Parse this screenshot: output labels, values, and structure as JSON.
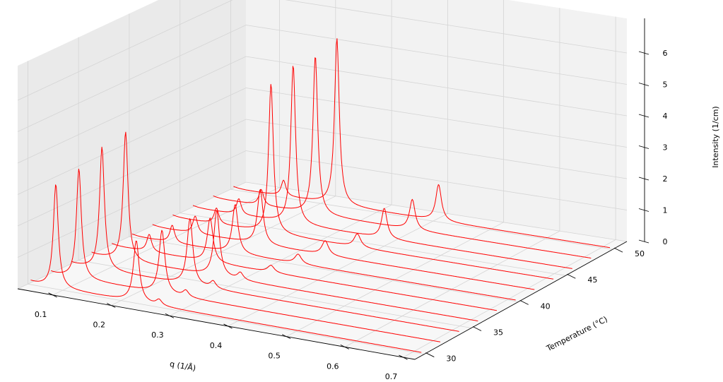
{
  "chart_data": {
    "type": "waterfall-3d-line",
    "title": "",
    "xlabel": "q (1/Å)",
    "ylabel": "Temperature (°C)",
    "zlabel": "Intensity (1/cm)",
    "xlim": [
      0.04,
      0.72
    ],
    "ylim": [
      29,
      51.5
    ],
    "zlim": [
      0,
      6.5
    ],
    "x_ticks": [
      "0.1",
      "0.2",
      "0.3",
      "0.4",
      "0.5",
      "0.6",
      "0.7"
    ],
    "y_ticks": [
      "30",
      "35",
      "40",
      "45",
      "50"
    ],
    "z_ticks": [
      "0",
      "1",
      "2",
      "3",
      "4",
      "5",
      "6"
    ],
    "grid": true,
    "line_color": "#ff0000",
    "series": [
      {
        "temperature": 30,
        "peaks": [
          [
            0.088,
            3.3,
            0.005
          ],
          [
            0.226,
            1.95,
            0.006
          ],
          [
            0.265,
            0.18,
            0.006
          ]
        ]
      },
      {
        "temperature": 32,
        "peaks": [
          [
            0.093,
            3.5,
            0.005
          ],
          [
            0.236,
            2.0,
            0.006
          ],
          [
            0.277,
            0.2,
            0.006
          ]
        ]
      },
      {
        "temperature": 34,
        "peaks": [
          [
            0.098,
            3.9,
            0.005
          ],
          [
            0.25,
            2.1,
            0.006
          ],
          [
            0.29,
            0.22,
            0.006
          ]
        ]
      },
      {
        "temperature": 36,
        "peaks": [
          [
            0.104,
            4.1,
            0.005
          ],
          [
            0.262,
            2.1,
            0.006
          ],
          [
            0.303,
            0.22,
            0.006
          ]
        ]
      },
      {
        "temperature": 38,
        "peaks": [
          [
            0.11,
            0.55,
            0.005
          ],
          [
            0.216,
            1.4,
            0.006
          ],
          [
            0.322,
            0.22,
            0.007
          ]
        ]
      },
      {
        "temperature": 40,
        "peaks": [
          [
            0.115,
            0.55,
            0.005
          ],
          [
            0.225,
            1.55,
            0.006
          ],
          [
            0.335,
            0.3,
            0.007
          ]
        ]
      },
      {
        "temperature": 42,
        "peaks": [
          [
            0.12,
            0.55,
            0.005
          ],
          [
            0.234,
            1.75,
            0.006
          ],
          [
            0.348,
            0.45,
            0.007
          ]
        ]
      },
      {
        "temperature": 44,
        "peaks": [
          [
            0.122,
            0.5,
            0.005
          ],
          [
            0.218,
            4.75,
            0.005
          ],
          [
            0.37,
            0.42,
            0.007
          ]
        ]
      },
      {
        "temperature": 46,
        "peaks": [
          [
            0.126,
            0.5,
            0.005
          ],
          [
            0.222,
            5.05,
            0.005
          ],
          [
            0.383,
            0.95,
            0.006
          ]
        ]
      },
      {
        "temperature": 48,
        "peaks": [
          [
            0.13,
            0.5,
            0.005
          ],
          [
            0.226,
            5.05,
            0.005
          ],
          [
            0.398,
            0.96,
            0.006
          ]
        ]
      },
      {
        "temperature": 50,
        "peaks": [
          [
            0.134,
            0.5,
            0.005
          ],
          [
            0.229,
            5.3,
            0.005
          ],
          [
            0.41,
            1.15,
            0.006
          ]
        ]
      }
    ]
  }
}
